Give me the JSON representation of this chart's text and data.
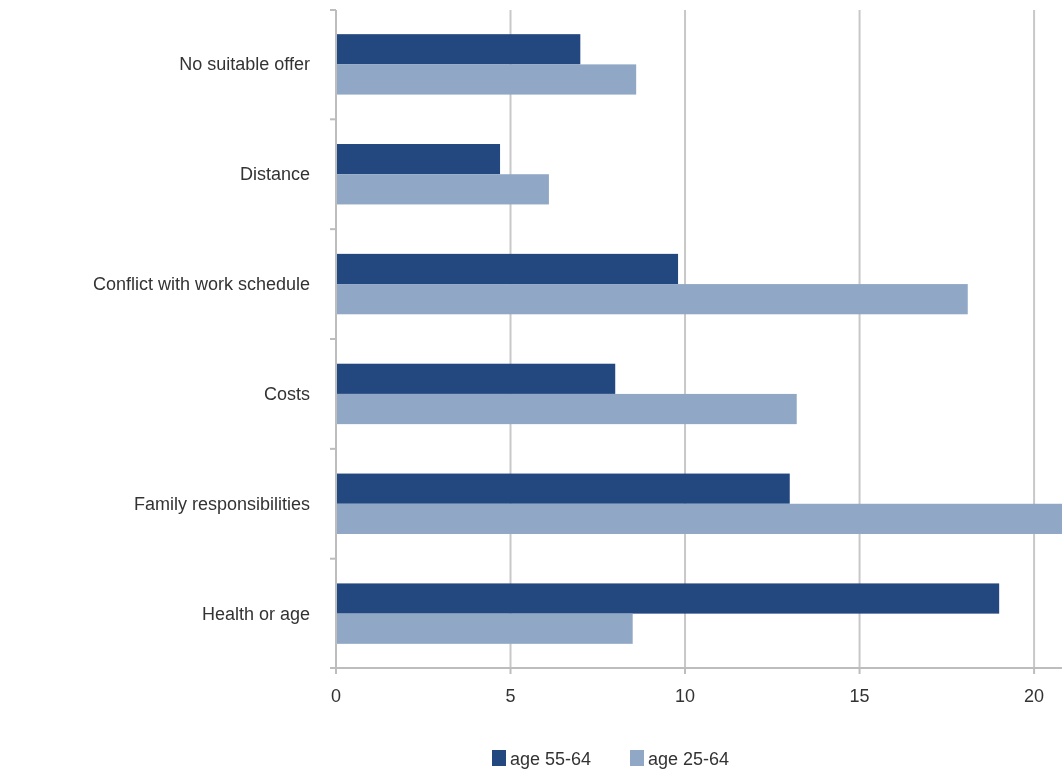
{
  "chart_data": {
    "type": "bar",
    "orientation": "horizontal",
    "categories": [
      "No suitable offer",
      "Distance",
      "Conflict with work schedule",
      "Costs",
      "Family responsibilities",
      "Health or age"
    ],
    "series": [
      {
        "name": "age 55-64",
        "color": "#23477f",
        "values": [
          7.0,
          4.7,
          9.8,
          8.0,
          13.0,
          19.0
        ]
      },
      {
        "name": "age 25-64",
        "color": "#91a7c6",
        "values": [
          8.6,
          6.1,
          18.1,
          13.2,
          20.8,
          8.5
        ]
      }
    ],
    "xlim": [
      0,
      20.8
    ],
    "xticks": [
      0,
      5,
      10,
      15,
      20
    ],
    "grid": "x",
    "legend": "bottom"
  }
}
